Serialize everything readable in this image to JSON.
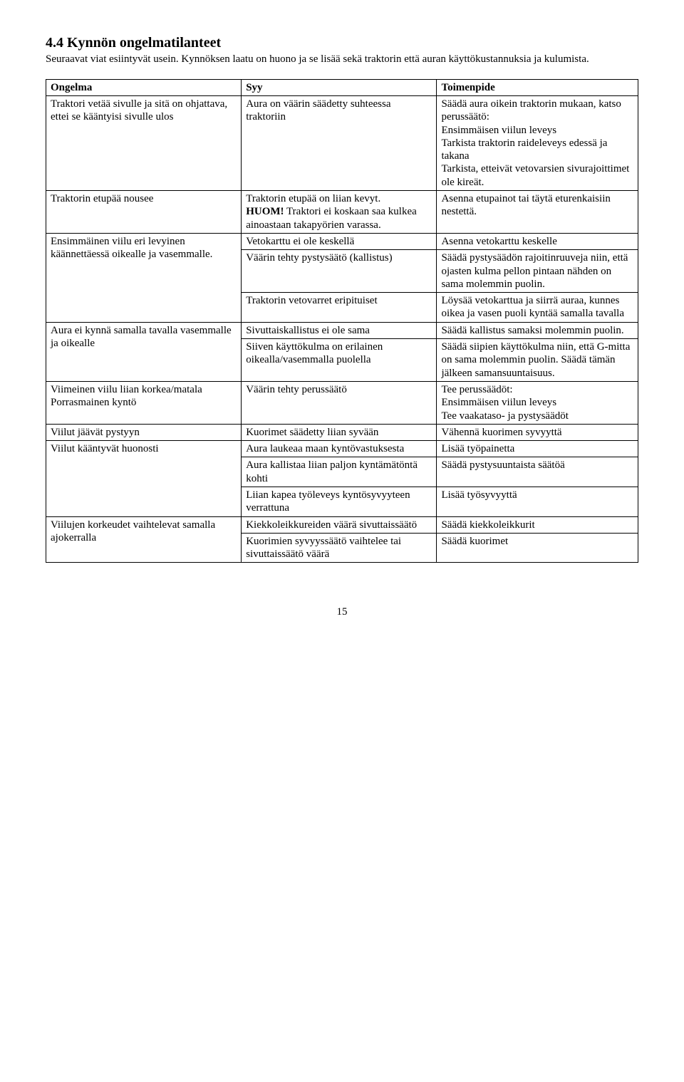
{
  "section": {
    "heading": "4.4 Kynnön ongelmatilanteet",
    "intro": "Seuraavat viat esiintyvät usein. Kynnöksen laatu on huono ja se lisää sekä traktorin että auran käyttökustannuksia ja kulumista."
  },
  "headers": {
    "problem": "Ongelma",
    "cause": "Syy",
    "remedy": "Toimenpide"
  },
  "cells": {
    "r1_problem": "Traktori vetää sivulle ja sitä on ohjattava, ettei se kääntyisi sivulle ulos",
    "r1_cause": "Aura on väärin säädetty suhteessa traktoriin",
    "r1_remedy": "Säädä aura oikein traktorin mukaan, katso perussäätö:\nEnsimmäisen viilun leveys\nTarkista traktorin raideleveys edessä ja takana\nTarkista, etteivät vetovarsien sivurajoittimet ole kireät.",
    "r2_problem": "Traktorin etupää nousee",
    "r2_cause_a": "Traktorin etupää on liian kevyt.",
    "r2_cause_b_bold": "HUOM!",
    "r2_cause_b_rest": " Traktori ei koskaan saa kulkea ainoastaan takapyörien varassa.",
    "r2_remedy": "Asenna etupainot tai täytä eturenkaisiin nestettä.",
    "r3_problem": "Ensimmäinen viilu eri levyinen käännettäessä oikealle ja vasemmalle.",
    "r3a_cause": "Vetokarttu ei ole keskellä",
    "r3a_remedy": "Asenna vetokarttu keskelle",
    "r3b_cause": "Väärin tehty pystysäätö (kallistus)",
    "r3b_remedy": "Säädä pystysäädön rajoitinruuveja niin, että ojasten kulma pellon pintaan nähden on sama molemmin puolin.",
    "r3c_cause": "Traktorin vetovarret eripituiset",
    "r3c_remedy": "Löysää vetokarttua ja siirrä auraa, kunnes oikea ja vasen puoli kyntää samalla tavalla",
    "r4_problem": "Aura ei kynnä samalla tavalla vasemmalle ja oikealle",
    "r4a_cause": "Sivuttaiskallistus ei ole sama",
    "r4a_remedy": "Säädä kallistus samaksi molemmin puolin.",
    "r4b_cause": "Siiven käyttökulma on erilainen oikealla/vasemmalla puolella",
    "r4b_remedy": "Säädä siipien käyttökulma niin, että G-mitta on sama molemmin puolin. Säädä tämän jälkeen samansuuntaisuus.",
    "r5_problem": "Viimeinen viilu liian korkea/matala\nPorrasmainen kyntö",
    "r5_cause": "Väärin tehty perussäätö",
    "r5_remedy": "Tee perussäädöt:\nEnsimmäisen viilun leveys\nTee vaakataso- ja pystysäädöt",
    "r6_problem": "Viilut jäävät pystyyn",
    "r6_cause": "Kuorimet säädetty liian syvään",
    "r6_remedy": "Vähennä kuorimen syvyyttä",
    "r7_problem": "Viilut kääntyvät huonosti",
    "r7a_cause": "Aura laukeaa maan kyntövastuksesta",
    "r7a_remedy": "Lisää työpainetta",
    "r7b_cause": "Aura kallistaa liian paljon kyntämätöntä kohti",
    "r7b_remedy": "Säädä pystysuuntaista säätöä",
    "r7c_cause": "Liian kapea työleveys kyntösyvyyteen verrattuna",
    "r7c_remedy": "Lisää työsyvyyttä",
    "r8_problem": "Viilujen korkeudet vaihtelevat samalla ajokerralla",
    "r8a_cause": "Kiekkoleikkureiden väärä sivuttaissäätö",
    "r8a_remedy": "Säädä kiekkoleikkurit",
    "r8b_cause": "Kuorimien syvyyssäätö vaihtelee tai sivuttaissäätö väärä",
    "r8b_remedy": "Säädä kuorimet"
  },
  "page_number": "15"
}
